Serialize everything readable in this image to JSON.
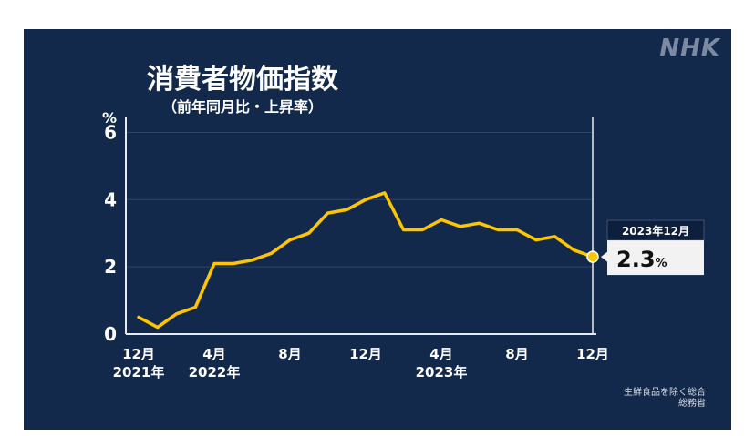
{
  "brand": {
    "logo": "NHK"
  },
  "note": {
    "line1": "生鮮食品を除く総合",
    "line2": "総務省"
  },
  "chart_data": {
    "type": "line",
    "title": "消費者物価指数",
    "subtitle": "（前年同月比・上昇率）",
    "ylabel": "%",
    "ylim": [
      0,
      6.5
    ],
    "yticks": [
      "0",
      "2",
      "4",
      "6"
    ],
    "xtick_labels": [
      {
        "index": 0,
        "month": "12月",
        "year": "2021年"
      },
      {
        "index": 4,
        "month": "4月",
        "year": "2022年"
      },
      {
        "index": 8,
        "month": "8月",
        "year": ""
      },
      {
        "index": 12,
        "month": "12月",
        "year": ""
      },
      {
        "index": 16,
        "month": "4月",
        "year": "2023年"
      },
      {
        "index": 20,
        "month": "8月",
        "year": ""
      },
      {
        "index": 24,
        "month": "12月",
        "year": ""
      }
    ],
    "series": [
      {
        "values": [
          0.5,
          0.2,
          0.6,
          0.8,
          2.1,
          2.1,
          2.2,
          2.4,
          2.8,
          3.0,
          3.6,
          3.7,
          4.0,
          4.2,
          3.1,
          3.1,
          3.4,
          3.2,
          3.3,
          3.1,
          3.1,
          2.8,
          2.9,
          2.5,
          2.3
        ]
      }
    ],
    "callout": {
      "label": "2023年12月",
      "value": "2.3",
      "unit": "%"
    },
    "grid": true,
    "colors": {
      "background": "#13294b",
      "line": "#ffc600",
      "grid": "#2f4668",
      "axis": "#e8ecf2"
    }
  }
}
